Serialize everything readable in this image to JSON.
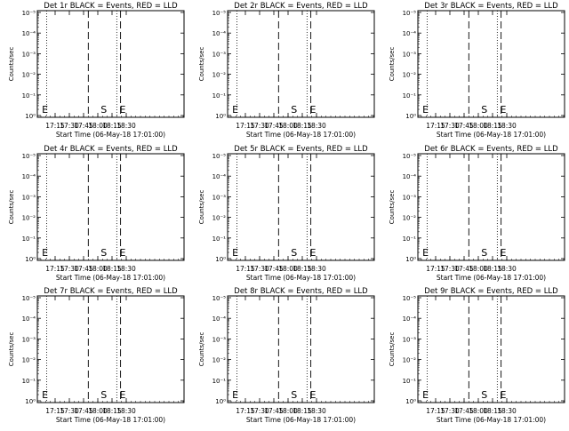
{
  "chart_data": [
    {
      "type": "line",
      "title": "Det 1r BLACK = Events, RED = LLD",
      "xlabel": "Start Time (06-May-18 17:01:00)",
      "ylabel": "Counts/sec",
      "x_ticks": [
        "17:15",
        "17:30",
        "17:45",
        "18:00",
        "18:15",
        "18:30"
      ],
      "y_ticks": [
        "10⁰",
        "10⁻¹",
        "10⁻²",
        "10⁻³",
        "10⁻⁴",
        "10⁻⁵"
      ],
      "log_scale_y": true,
      "markers": [
        {
          "label": "E",
          "time": "17:01"
        },
        {
          "label": "S",
          "time": "18:03"
        },
        {
          "label": "E",
          "time": "18:23"
        }
      ],
      "dotted_lines": [
        "17:06",
        "18:20"
      ],
      "dashed_lines": [
        "17:50",
        "18:24"
      ],
      "series": []
    },
    {
      "type": "line",
      "title": "Det 2r BLACK = Events, RED = LLD",
      "xlabel": "Start Time (06-May-18 17:01:00)",
      "ylabel": "Counts/sec",
      "x_ticks": [
        "17:15",
        "17:30",
        "17:45",
        "18:00",
        "18:15",
        "18:30"
      ],
      "y_ticks": [
        "10⁰",
        "10⁻¹",
        "10⁻²",
        "10⁻³",
        "10⁻⁴",
        "10⁻⁵"
      ],
      "log_scale_y": true,
      "markers": [
        {
          "label": "E",
          "time": "17:01"
        },
        {
          "label": "S",
          "time": "18:03"
        },
        {
          "label": "E",
          "time": "18:23"
        }
      ],
      "dotted_lines": [
        "17:06",
        "18:20"
      ],
      "dashed_lines": [
        "17:50",
        "18:24"
      ],
      "series": []
    },
    {
      "type": "line",
      "title": "Det 3r BLACK = Events, RED = LLD",
      "xlabel": "Start Time (06-May-18 17:01:00)",
      "ylabel": "Counts/sec",
      "x_ticks": [
        "17:15",
        "17:30",
        "17:45",
        "18:00",
        "18:15",
        "18:30"
      ],
      "y_ticks": [
        "10⁰",
        "10⁻¹",
        "10⁻²",
        "10⁻³",
        "10⁻⁴",
        "10⁻⁵"
      ],
      "log_scale_y": true,
      "markers": [
        {
          "label": "E",
          "time": "17:01"
        },
        {
          "label": "S",
          "time": "18:03"
        },
        {
          "label": "E",
          "time": "18:23"
        }
      ],
      "dotted_lines": [
        "17:06",
        "18:20"
      ],
      "dashed_lines": [
        "17:50",
        "18:24"
      ],
      "series": []
    },
    {
      "type": "line",
      "title": "Det 4r BLACK = Events, RED = LLD",
      "xlabel": "Start Time (06-May-18 17:01:00)",
      "ylabel": "Counts/sec",
      "x_ticks": [
        "17:15",
        "17:30",
        "17:45",
        "18:00",
        "18:15",
        "18:30"
      ],
      "y_ticks": [
        "10⁰",
        "10⁻¹",
        "10⁻²",
        "10⁻³",
        "10⁻⁴",
        "10⁻⁵"
      ],
      "log_scale_y": true,
      "markers": [
        {
          "label": "E",
          "time": "17:01"
        },
        {
          "label": "S",
          "time": "18:03"
        },
        {
          "label": "E",
          "time": "18:23"
        }
      ],
      "dotted_lines": [
        "17:06",
        "18:20"
      ],
      "dashed_lines": [
        "17:50",
        "18:24"
      ],
      "series": []
    },
    {
      "type": "line",
      "title": "Det 5r BLACK = Events, RED = LLD",
      "xlabel": "Start Time (06-May-18 17:01:00)",
      "ylabel": "Counts/sec",
      "x_ticks": [
        "17:15",
        "17:30",
        "17:45",
        "18:00",
        "18:15",
        "18:30"
      ],
      "y_ticks": [
        "10⁰",
        "10⁻¹",
        "10⁻²",
        "10⁻³",
        "10⁻⁴",
        "10⁻⁵"
      ],
      "log_scale_y": true,
      "markers": [
        {
          "label": "E",
          "time": "17:01"
        },
        {
          "label": "S",
          "time": "18:03"
        },
        {
          "label": "E",
          "time": "18:23"
        }
      ],
      "dotted_lines": [
        "17:06",
        "18:20"
      ],
      "dashed_lines": [
        "17:50",
        "18:24"
      ],
      "series": []
    },
    {
      "type": "line",
      "title": "Det 6r BLACK = Events, RED = LLD",
      "xlabel": "Start Time (06-May-18 17:01:00)",
      "ylabel": "Counts/sec",
      "x_ticks": [
        "17:15",
        "17:30",
        "17:45",
        "18:00",
        "18:15",
        "18:30"
      ],
      "y_ticks": [
        "10⁰",
        "10⁻¹",
        "10⁻²",
        "10⁻³",
        "10⁻⁴",
        "10⁻⁵"
      ],
      "log_scale_y": true,
      "markers": [
        {
          "label": "E",
          "time": "17:01"
        },
        {
          "label": "S",
          "time": "18:03"
        },
        {
          "label": "E",
          "time": "18:23"
        }
      ],
      "dotted_lines": [
        "17:06",
        "18:20"
      ],
      "dashed_lines": [
        "17:50",
        "18:24"
      ],
      "series": []
    },
    {
      "type": "line",
      "title": "Det 7r BLACK = Events, RED = LLD",
      "xlabel": "Start Time (06-May-18 17:01:00)",
      "ylabel": "Counts/sec",
      "x_ticks": [
        "17:15",
        "17:30",
        "17:45",
        "18:00",
        "18:15",
        "18:30"
      ],
      "y_ticks": [
        "10⁰",
        "10⁻¹",
        "10⁻²",
        "10⁻³",
        "10⁻⁴",
        "10⁻⁵"
      ],
      "log_scale_y": true,
      "markers": [
        {
          "label": "E",
          "time": "17:01"
        },
        {
          "label": "S",
          "time": "18:03"
        },
        {
          "label": "E",
          "time": "18:23"
        }
      ],
      "dotted_lines": [
        "17:06",
        "18:20"
      ],
      "dashed_lines": [
        "17:50",
        "18:24"
      ],
      "series": []
    },
    {
      "type": "line",
      "title": "Det 8r BLACK = Events, RED = LLD",
      "xlabel": "Start Time (06-May-18 17:01:00)",
      "ylabel": "Counts/sec",
      "x_ticks": [
        "17:15",
        "17:30",
        "17:45",
        "18:00",
        "18:15",
        "18:30"
      ],
      "y_ticks": [
        "10⁰",
        "10⁻¹",
        "10⁻²",
        "10⁻³",
        "10⁻⁴",
        "10⁻⁵"
      ],
      "log_scale_y": true,
      "markers": [
        {
          "label": "E",
          "time": "17:01"
        },
        {
          "label": "S",
          "time": "18:03"
        },
        {
          "label": "E",
          "time": "18:23"
        }
      ],
      "dotted_lines": [
        "17:06",
        "18:20"
      ],
      "dashed_lines": [
        "17:50",
        "18:24"
      ],
      "series": []
    },
    {
      "type": "line",
      "title": "Det 9r BLACK = Events, RED = LLD",
      "xlabel": "Start Time (06-May-18 17:01:00)",
      "ylabel": "Counts/sec",
      "x_ticks": [
        "17:15",
        "17:30",
        "17:45",
        "18:00",
        "18:15",
        "18:30"
      ],
      "y_ticks": [
        "10⁰",
        "10⁻¹",
        "10⁻²",
        "10⁻³",
        "10⁻⁴",
        "10⁻⁵"
      ],
      "log_scale_y": true,
      "markers": [
        {
          "label": "E",
          "time": "17:01"
        },
        {
          "label": "S",
          "time": "18:03"
        },
        {
          "label": "E",
          "time": "18:23"
        }
      ],
      "dotted_lines": [
        "17:06",
        "18:20"
      ],
      "dashed_lines": [
        "17:50",
        "18:24"
      ],
      "series": []
    }
  ]
}
